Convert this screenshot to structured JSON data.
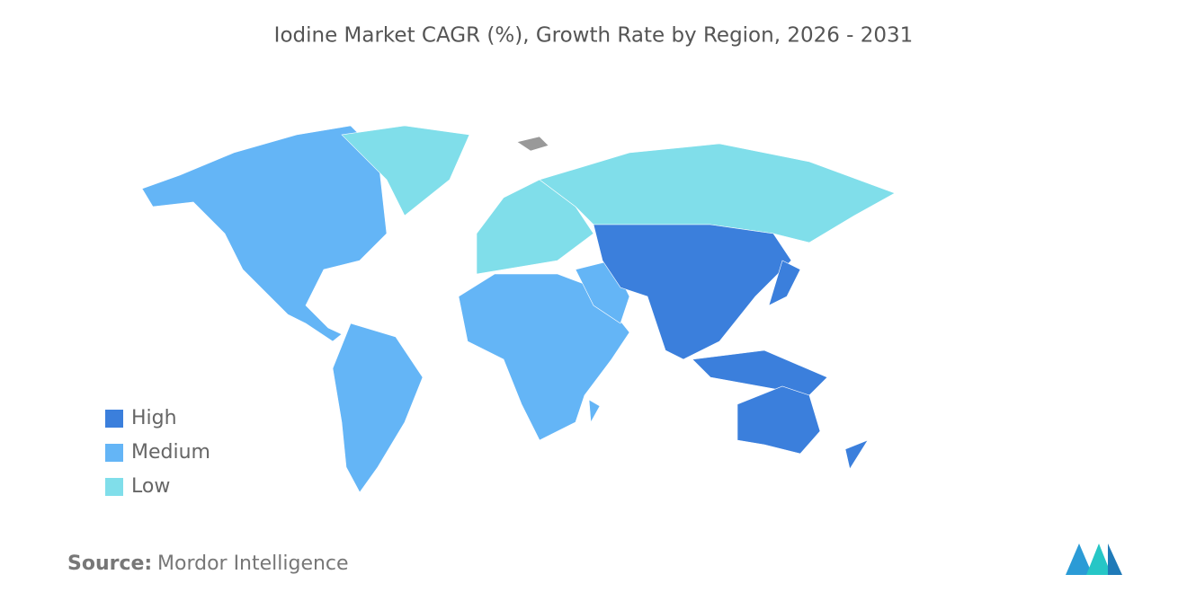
{
  "title": "Iodine Market CAGR (%), Growth Rate by Region, 2026 - 2031",
  "legend": [
    {
      "label": "High",
      "color": "#3b7fdc"
    },
    {
      "label": "Medium",
      "color": "#64b5f6"
    },
    {
      "label": "Low",
      "color": "#80deea"
    }
  ],
  "source": {
    "label": "Source:",
    "text": "Mordor Intelligence"
  }
}
